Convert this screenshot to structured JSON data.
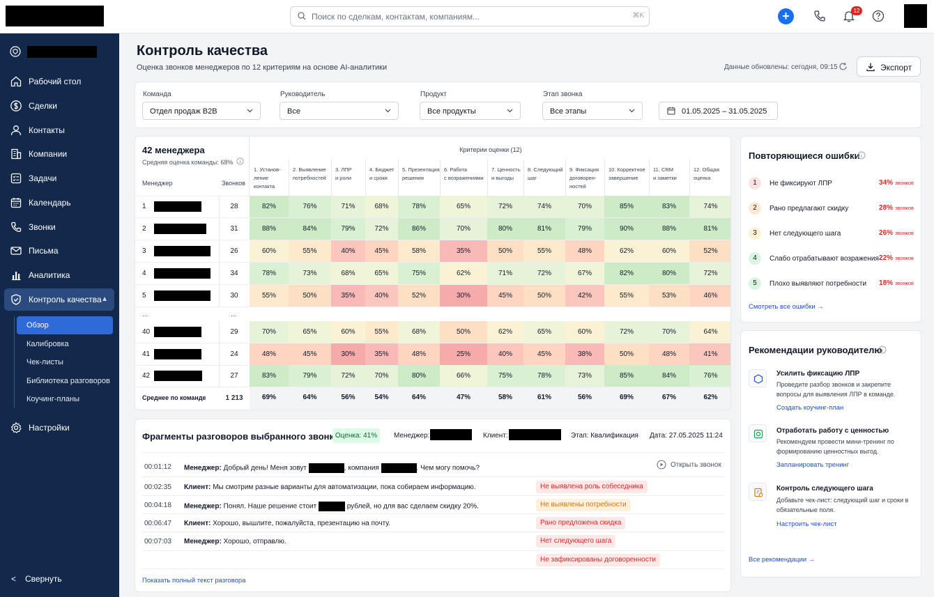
{
  "search": {
    "placeholder": "Поиск по сделкам, контактам, компаниям...",
    "shortcut": "⌘K"
  },
  "topbar": {
    "notifications": "12"
  },
  "sidebar": {
    "items": [
      {
        "label": "Рабочий стол",
        "icon": "home-icon"
      },
      {
        "label": "Сделки",
        "icon": "dollar-icon"
      },
      {
        "label": "Контакты",
        "icon": "user-icon"
      },
      {
        "label": "Компании",
        "icon": "building-icon"
      },
      {
        "label": "Задачи",
        "icon": "tasks-icon"
      },
      {
        "label": "Календарь",
        "icon": "calendar-icon"
      },
      {
        "label": "Звонки",
        "icon": "phone-icon"
      },
      {
        "label": "Письма",
        "icon": "mail-icon"
      },
      {
        "label": "Аналитика",
        "icon": "bar-chart-icon"
      },
      {
        "label": "Контроль качества",
        "icon": "shield-check-icon"
      }
    ],
    "subitems": [
      "Обзор",
      "Калибровка",
      "Чек-листы",
      "Библиотека разговоров",
      "Коучинг-планы"
    ],
    "settings": "Настройки",
    "collapse": "Свернуть"
  },
  "header": {
    "title": "Контроль качества",
    "subtitle": "Оценка звонков менеджеров по 12 критериям на основе AI-аналитики",
    "updated": "Данные обновлены: сегодня, 09:15",
    "export": "Экспорт"
  },
  "filters": [
    {
      "label": "Команда",
      "value": "Отдел продаж B2B"
    },
    {
      "label": "Руководитель",
      "value": "Все"
    },
    {
      "label": "Продукт",
      "value": "Все продукты"
    },
    {
      "label": "Этап звонка",
      "value": "Все этапы"
    }
  ],
  "date_range": "01.05.2025 – 31.05.2025",
  "table": {
    "title": "42 менеджера",
    "avg": "Средняя оценка команды: 68%",
    "criteria_title": "Критерии оценки (12)",
    "col_manager": "Менеджер",
    "col_calls": "Звонков",
    "criteria": [
      [
        "1. Установ-",
        "ление",
        "контакта"
      ],
      [
        "2. Выявление",
        "потребностей"
      ],
      [
        "3. ЛПР",
        "и роли"
      ],
      [
        "4. Бюджет",
        "и сроки"
      ],
      [
        "5. Презентация",
        "решения"
      ],
      [
        "6. Работа",
        "с возражениями"
      ],
      [
        "7. Ценность",
        "и выгоды"
      ],
      [
        "8. Следующий",
        "шаг"
      ],
      [
        "9. Фиксация",
        "договорен-",
        "ностей"
      ],
      [
        "10. Корректное",
        "завершение"
      ],
      [
        "11. CRM",
        "и заметки"
      ],
      [
        "12. Общая",
        "оценка"
      ]
    ],
    "rows": [
      {
        "n": "1",
        "calls": "28",
        "v": [
          82,
          76,
          71,
          68,
          78,
          65,
          72,
          74,
          70,
          85,
          83,
          74
        ]
      },
      {
        "n": "2",
        "calls": "31",
        "v": [
          88,
          84,
          79,
          72,
          86,
          70,
          80,
          81,
          79,
          90,
          88,
          81
        ]
      },
      {
        "n": "3",
        "calls": "26",
        "v": [
          60,
          55,
          40,
          45,
          58,
          35,
          50,
          55,
          48,
          62,
          60,
          52
        ]
      },
      {
        "n": "4",
        "calls": "34",
        "v": [
          78,
          73,
          68,
          65,
          75,
          62,
          71,
          72,
          67,
          82,
          80,
          72
        ]
      },
      {
        "n": "5",
        "calls": "30",
        "v": [
          55,
          50,
          35,
          40,
          52,
          30,
          45,
          50,
          42,
          55,
          53,
          46
        ]
      },
      {
        "n": "40",
        "calls": "29",
        "v": [
          70,
          65,
          60,
          55,
          68,
          50,
          62,
          65,
          60,
          72,
          70,
          64
        ]
      },
      {
        "n": "41",
        "calls": "24",
        "v": [
          48,
          45,
          30,
          35,
          48,
          25,
          40,
          45,
          38,
          50,
          48,
          41
        ]
      },
      {
        "n": "42",
        "calls": "27",
        "v": [
          83,
          79,
          72,
          70,
          80,
          66,
          75,
          78,
          73,
          85,
          84,
          76
        ]
      }
    ],
    "ellipsis": "...",
    "total_label": "Среднее по команде",
    "total_calls": "1 213",
    "totals": [
      69,
      64,
      56,
      54,
      64,
      47,
      58,
      61,
      56,
      69,
      67,
      62
    ]
  },
  "fragments": {
    "title": "Фрагменты разговоров выбранного звонка",
    "score": "Оценка: 41%",
    "manager_label": "Менеджер:",
    "client_label": "Клиент:",
    "stage": "Этап: Квалификация",
    "date": "Дата: 27.05.2025 11:24",
    "open_call": "Открыть звонок",
    "lines": [
      {
        "time": "00:01:12",
        "speaker": "Менеджер:",
        "t1": "Добрый день! Меня зовут",
        "t2": ", компания",
        "t3": ". Чем могу помочь?"
      },
      {
        "time": "00:02:35",
        "speaker": "Клиент:",
        "t1": "Мы смотрим разные варианты для автоматизации, пока собираем информацию."
      },
      {
        "time": "00:04:18",
        "speaker": "Менеджер:",
        "t1": "Понял. Наше решение стоит",
        "t2": "рублей, но для вас сделаем скидку 20%."
      },
      {
        "time": "00:06:47",
        "speaker": "Клиент:",
        "t1": "Хорошо, вышлите, пожалуйста, презентацию на почту."
      },
      {
        "time": "00:07:03",
        "speaker": "Менеджер:",
        "t1": "Хорошо, отправлю."
      }
    ],
    "tags": [
      "Не выявлена роль собеседника",
      "Не выявлены потребности",
      "Рано предложена скидка",
      "Нет следующего шага",
      "Не зафиксированы договоренности"
    ],
    "link": "Показать полный текст разговора"
  },
  "errors": {
    "title": "Повторяющиеся ошибки",
    "items": [
      {
        "n": "1",
        "label": "Не фиксируют ЛПР",
        "pct": "34%",
        "color": "#fde2e2"
      },
      {
        "n": "2",
        "label": "Рано предлагают скидку",
        "pct": "28%",
        "color": "#fde8d4"
      },
      {
        "n": "3",
        "label": "Нет следующего шага",
        "pct": "26%",
        "color": "#fdf1d1"
      },
      {
        "n": "4",
        "label": "Слабо отрабатывают возражения",
        "pct": "22%",
        "color": "#dcf5e2"
      },
      {
        "n": "5",
        "label": "Плохо выявляют потребности",
        "pct": "18%",
        "color": "#dcf5e2"
      }
    ],
    "unit": "звонков",
    "link": "Смотреть все ошибки"
  },
  "recommendations": {
    "title": "Рекомендации руководителю",
    "items": [
      {
        "title": "Усилить фиксацию ЛПР",
        "desc": "Проведите разбор звонков и закрепите вопросы для выявления ЛПР в команде.",
        "link": "Создать коучинг-план"
      },
      {
        "title": "Отработать работу с ценностью",
        "desc": "Рекомендуем провести мини-тренинг по формированию ценностных выгод.",
        "link": "Запланировать тренинг"
      },
      {
        "title": "Контроль следующего шага",
        "desc": "Добавьте чек-лист: следующий шаг и сроки в обязательные поля.",
        "link": "Настроить чек-лист"
      }
    ],
    "link": "Все рекомендации"
  }
}
